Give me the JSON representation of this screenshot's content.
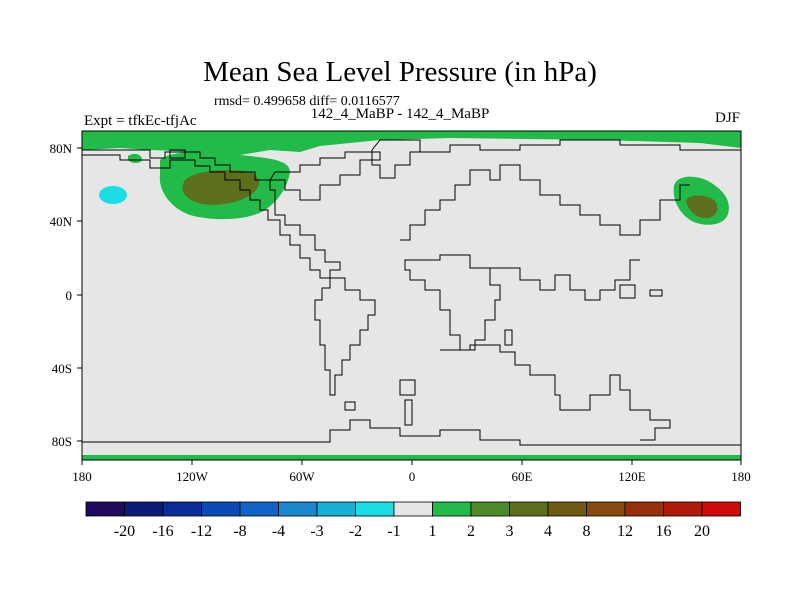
{
  "title": "Mean Sea Level Pressure (in hPa)",
  "stats": "rmsd= 0.499658 diff= 0.0116577",
  "subtitle": "142_4_MaBP - 142_4_MaBP",
  "left_label": "Expt = tfkEc-tfjAc",
  "right_label": "DJF",
  "x_ticks": [
    "180",
    "120W",
    "60W",
    "0",
    "60E",
    "120E",
    "180"
  ],
  "y_ticks": [
    "80N",
    "40N",
    "0",
    "40S",
    "80S"
  ],
  "colorbar": {
    "colors": [
      "#1f0a5e",
      "#0c1a7a",
      "#0a2e96",
      "#0a4ab4",
      "#1063c8",
      "#1a86cf",
      "#19b0d8",
      "#1bdde6",
      "#e6e6e6",
      "#22bb4a",
      "#4c8a28",
      "#5d6e1c",
      "#6e5a10",
      "#874a0c",
      "#96300a",
      "#b01a08",
      "#d00a0a"
    ],
    "labels": [
      "-20",
      "-16",
      "-12",
      "-8",
      "-4",
      "-3",
      "-2",
      "-1",
      "1",
      "2",
      "3",
      "4",
      "8",
      "12",
      "16",
      "20"
    ]
  }
}
